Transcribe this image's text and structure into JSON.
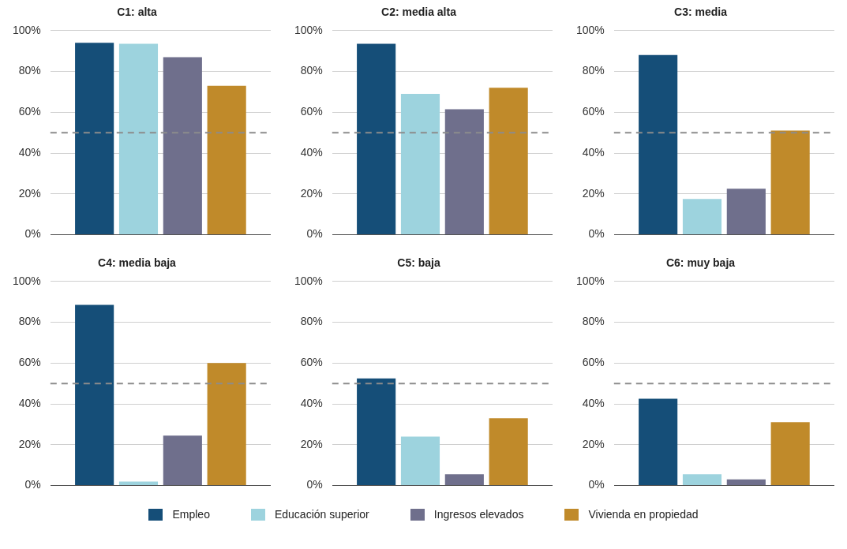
{
  "chart_data": [
    {
      "type": "bar",
      "title": "C1: alta",
      "categories": [
        null
      ],
      "legend": "bottom",
      "grid": "y",
      "ylim": [
        0,
        100
      ],
      "yticks": [
        {
          "value": 0,
          "label": "0%"
        },
        {
          "value": 20,
          "label": "20%"
        },
        {
          "value": 40,
          "label": "40%"
        },
        {
          "value": 60,
          "label": "60%"
        },
        {
          "value": 80,
          "label": "80%"
        },
        {
          "value": 100,
          "label": "100%"
        }
      ],
      "ref_lines": [
        {
          "axis": "y",
          "value": 50,
          "color": "#8c8c8c",
          "line_style": "dashed"
        }
      ],
      "series": [
        {
          "name": "Empleo",
          "color": "#154e78",
          "values": [
            94
          ]
        },
        {
          "name": "Educación superior",
          "color": "#9dd3de",
          "values": [
            93.5
          ]
        },
        {
          "name": "Ingresos elevados",
          "color": "#6f6f8c",
          "values": [
            87
          ]
        },
        {
          "name": "Vivienda en propiedad",
          "color": "#c08a2a",
          "values": [
            73
          ]
        }
      ]
    },
    {
      "type": "bar",
      "title": "C2: media alta",
      "categories": [
        null
      ],
      "grid": "y",
      "ylim": [
        0,
        100
      ],
      "yticks": [
        {
          "value": 0,
          "label": "0%"
        },
        {
          "value": 20,
          "label": "20%"
        },
        {
          "value": 40,
          "label": "40%"
        },
        {
          "value": 60,
          "label": "60%"
        },
        {
          "value": 80,
          "label": "80%"
        },
        {
          "value": 100,
          "label": "100%"
        }
      ],
      "ref_lines": [
        {
          "axis": "y",
          "value": 50,
          "color": "#8c8c8c",
          "line_style": "dashed"
        }
      ],
      "series": [
        {
          "color": "#154e78",
          "values": [
            93.5
          ]
        },
        {
          "color": "#9dd3de",
          "values": [
            69
          ]
        },
        {
          "color": "#6f6f8c",
          "values": [
            61.5
          ]
        },
        {
          "color": "#c08a2a",
          "values": [
            72
          ]
        }
      ]
    },
    {
      "type": "bar",
      "title": "C3: media",
      "categories": [
        null
      ],
      "grid": "y",
      "ylim": [
        0,
        100
      ],
      "yticks": [
        {
          "value": 0,
          "label": "0%"
        },
        {
          "value": 20,
          "label": "20%"
        },
        {
          "value": 40,
          "label": "40%"
        },
        {
          "value": 60,
          "label": "60%"
        },
        {
          "value": 80,
          "label": "80%"
        },
        {
          "value": 100,
          "label": "100%"
        }
      ],
      "ref_lines": [
        {
          "axis": "y",
          "value": 50,
          "color": "#8c8c8c",
          "line_style": "dashed"
        }
      ],
      "series": [
        {
          "color": "#154e78",
          "values": [
            88
          ]
        },
        {
          "color": "#9dd3de",
          "values": [
            17.5
          ]
        },
        {
          "color": "#6f6f8c",
          "values": [
            22.5
          ]
        },
        {
          "color": "#c08a2a",
          "values": [
            51
          ]
        }
      ]
    },
    {
      "type": "bar",
      "title": "C4: media baja",
      "categories": [
        null
      ],
      "grid": "y",
      "ylim": [
        0,
        100
      ],
      "yticks": [
        {
          "value": 0,
          "label": "0%"
        },
        {
          "value": 20,
          "label": "20%"
        },
        {
          "value": 40,
          "label": "40%"
        },
        {
          "value": 60,
          "label": "60%"
        },
        {
          "value": 80,
          "label": "80%"
        },
        {
          "value": 100,
          "label": "100%"
        }
      ],
      "ref_lines": [
        {
          "axis": "y",
          "value": 50,
          "color": "#8c8c8c",
          "line_style": "dashed"
        }
      ],
      "series": [
        {
          "color": "#154e78",
          "values": [
            88.5
          ]
        },
        {
          "color": "#9dd3de",
          "values": [
            2
          ]
        },
        {
          "color": "#6f6f8c",
          "values": [
            24.5
          ]
        },
        {
          "color": "#c08a2a",
          "values": [
            60
          ]
        }
      ]
    },
    {
      "type": "bar",
      "title": "C5: baja",
      "categories": [
        null
      ],
      "grid": "y",
      "ylim": [
        0,
        100
      ],
      "yticks": [
        {
          "value": 0,
          "label": "0%"
        },
        {
          "value": 20,
          "label": "20%"
        },
        {
          "value": 40,
          "label": "40%"
        },
        {
          "value": 60,
          "label": "60%"
        },
        {
          "value": 80,
          "label": "80%"
        },
        {
          "value": 100,
          "label": "100%"
        }
      ],
      "ref_lines": [
        {
          "axis": "y",
          "value": 50,
          "color": "#8c8c8c",
          "line_style": "dashed"
        }
      ],
      "series": [
        {
          "color": "#154e78",
          "values": [
            52.5
          ]
        },
        {
          "color": "#9dd3de",
          "values": [
            24
          ]
        },
        {
          "color": "#6f6f8c",
          "values": [
            5.5
          ]
        },
        {
          "color": "#c08a2a",
          "values": [
            33
          ]
        }
      ]
    },
    {
      "type": "bar",
      "title": "C6: muy baja",
      "categories": [
        null
      ],
      "grid": "y",
      "ylim": [
        0,
        100
      ],
      "yticks": [
        {
          "value": 0,
          "label": "0%"
        },
        {
          "value": 20,
          "label": "20%"
        },
        {
          "value": 40,
          "label": "40%"
        },
        {
          "value": 60,
          "label": "60%"
        },
        {
          "value": 80,
          "label": "80%"
        },
        {
          "value": 100,
          "label": "100%"
        }
      ],
      "ref_lines": [
        {
          "axis": "y",
          "value": 50,
          "color": "#8c8c8c",
          "line_style": "dashed"
        }
      ],
      "series": [
        {
          "color": "#154e78",
          "values": [
            42.5
          ]
        },
        {
          "color": "#9dd3de",
          "values": [
            5.5
          ]
        },
        {
          "color": "#6f6f8c",
          "values": [
            3
          ]
        },
        {
          "color": "#c08a2a",
          "values": [
            31
          ]
        }
      ]
    }
  ]
}
